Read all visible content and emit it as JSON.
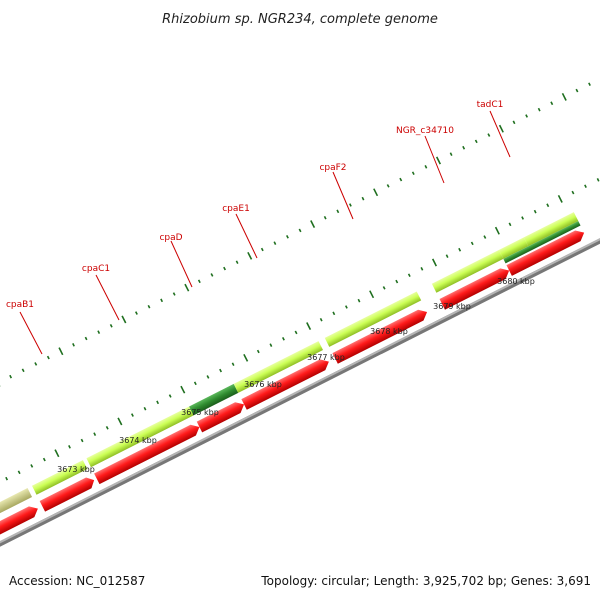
{
  "title": "Rhizobium sp. NGR234, complete genome",
  "footer": {
    "accession": "Accession: NC_012587",
    "summary": "Topology: circular; Length: 3,925,702 bp; Genes: 3,691"
  },
  "scale": {
    "ticks": [
      "3673 kbp",
      "3674 kbp",
      "3675 kbp",
      "3676 kbp",
      "3677 kbp",
      "3678 kbp",
      "3679 kbp",
      "3680 kbp"
    ]
  },
  "genes": [
    {
      "name": "cpaB1"
    },
    {
      "name": "cpaC1"
    },
    {
      "name": "cpaD"
    },
    {
      "name": "cpaE1"
    },
    {
      "name": "cpaF2"
    },
    {
      "name": "NGR_c34710"
    },
    {
      "name": "tadC1"
    }
  ],
  "colors": {
    "cds_forward": "#ccff55",
    "cds_highlight": "#2e8b2e",
    "gene_reverse": "#ff1a1a",
    "backbone": "#8c8c8c",
    "tick": "#1f6f1f",
    "label": "#cc0000",
    "other_feature": "#2255ee"
  }
}
